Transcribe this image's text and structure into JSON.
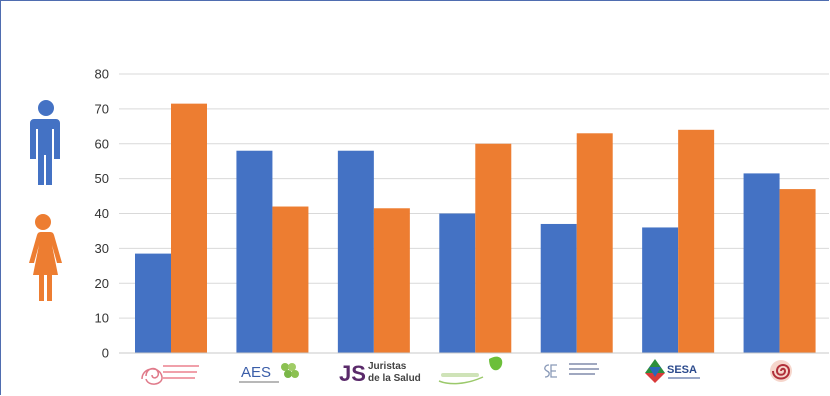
{
  "chart_data": {
    "type": "bar",
    "title": "",
    "xlabel": "",
    "ylabel": "",
    "ylim": [
      0,
      80
    ],
    "yticks": [
      0,
      10,
      20,
      30,
      40,
      50,
      60,
      70,
      80
    ],
    "grid": true,
    "legend": "left (icons)",
    "categories": [
      "",
      "AES",
      "Juristas de la Salud",
      "",
      "",
      "SESA",
      ""
    ],
    "series": [
      {
        "legend_icon": "man-icon",
        "color": "#4472c4",
        "values": [
          28.5,
          58,
          58,
          40,
          37,
          36,
          51.5
        ]
      },
      {
        "legend_icon": "woman-icon",
        "color": "#ed7d31",
        "values": [
          71.5,
          42,
          41.5,
          60,
          63,
          64,
          47
        ]
      }
    ]
  },
  "logos": {
    "aes": "AES",
    "juristas_js": "JS",
    "juristas_l1": "Juristas",
    "juristas_l2": "de la Salud",
    "sesa": "SESA"
  },
  "icons": [
    "man-icon",
    "woman-icon",
    "asociacion-logo-icon",
    "aes-logo-icon",
    "juristas-logo-icon",
    "leaf-logo-icon",
    "se-logo-icon",
    "sesa-logo-icon",
    "spiral-logo-icon"
  ]
}
